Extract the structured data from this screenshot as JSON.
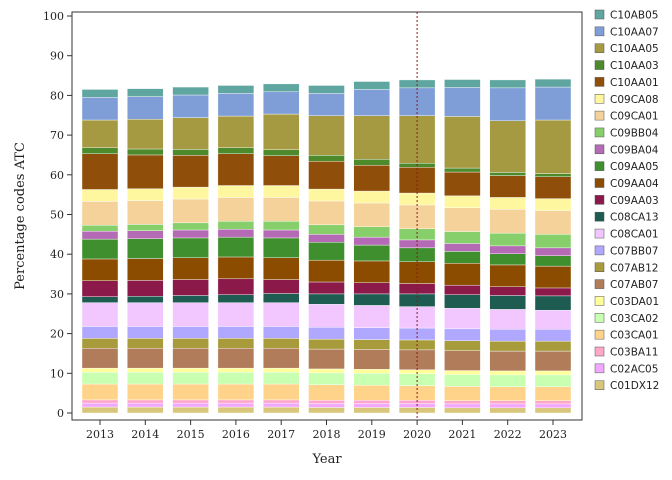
{
  "chart_data": {
    "type": "bar",
    "stacked": true,
    "title": "",
    "xlabel": "Year",
    "ylabel": "Percentage codes ATC",
    "ylim": [
      0,
      100
    ],
    "yticks": [
      0,
      10,
      20,
      30,
      40,
      50,
      60,
      70,
      80,
      90,
      100
    ],
    "grid": false,
    "legend_position": "right",
    "reference_line": {
      "x": "2020",
      "style": "dotted",
      "color": "#8b1a1a"
    },
    "categories": [
      "2013",
      "2014",
      "2015",
      "2016",
      "2017",
      "2018",
      "2019",
      "2020",
      "2021",
      "2022",
      "2023"
    ],
    "segments": [
      {
        "name": "C01DX12",
        "color": "#d8c77a",
        "values": [
          1.5,
          1.5,
          1.5,
          1.5,
          1.5,
          1.4,
          1.4,
          1.4,
          1.3,
          1.3,
          1.3
        ]
      },
      {
        "name": "C02AC05",
        "color": "#f2a8ff",
        "values": [
          1.0,
          1.0,
          1.0,
          1.0,
          1.0,
          1.0,
          1.0,
          1.0,
          1.0,
          1.0,
          1.0
        ]
      },
      {
        "name": "C03BA11",
        "color": "#ffa6c9",
        "values": [
          0.8,
          0.8,
          0.8,
          0.8,
          0.8,
          0.8,
          0.8,
          0.8,
          0.8,
          0.8,
          0.8
        ]
      },
      {
        "name": "C03CA01",
        "color": "#ffd48a",
        "values": [
          4.0,
          4.0,
          4.0,
          4.0,
          4.0,
          3.9,
          3.8,
          3.7,
          3.6,
          3.5,
          3.5
        ]
      },
      {
        "name": "C03CA02",
        "color": "#c8ffb0",
        "values": [
          3.0,
          3.0,
          3.0,
          3.0,
          3.0,
          3.0,
          3.0,
          3.0,
          3.0,
          3.0,
          3.0
        ]
      },
      {
        "name": "C03DA01",
        "color": "#ffff99",
        "values": [
          1.0,
          1.0,
          1.0,
          1.0,
          1.0,
          1.0,
          1.0,
          1.0,
          1.0,
          1.0,
          1.0
        ]
      },
      {
        "name": "C07AB07",
        "color": "#b07c5a",
        "values": [
          5.0,
          5.0,
          5.0,
          5.0,
          5.0,
          5.0,
          5.0,
          5.0,
          5.0,
          5.0,
          5.0
        ]
      },
      {
        "name": "C07AB12",
        "color": "#a79b3c",
        "values": [
          2.5,
          2.5,
          2.5,
          2.5,
          2.5,
          2.5,
          2.5,
          2.5,
          2.5,
          2.5,
          2.5
        ]
      },
      {
        "name": "C07BB07",
        "color": "#b0a8ff",
        "values": [
          3.0,
          3.0,
          3.0,
          3.0,
          3.0,
          3.0,
          3.0,
          3.0,
          3.0,
          3.0,
          3.0
        ]
      },
      {
        "name": "C08CA01",
        "color": "#f2c6ff",
        "values": [
          6.0,
          6.0,
          6.0,
          6.0,
          6.0,
          5.8,
          5.6,
          5.4,
          5.2,
          5.0,
          4.8
        ]
      },
      {
        "name": "C08CA13",
        "color": "#1e5b50",
        "values": [
          1.5,
          1.6,
          1.8,
          2.0,
          2.3,
          2.6,
          2.9,
          3.2,
          3.4,
          3.5,
          3.6
        ]
      },
      {
        "name": "C09AA03",
        "color": "#8b1a4a",
        "values": [
          4.0,
          4.0,
          4.0,
          4.0,
          3.5,
          3.0,
          2.8,
          2.6,
          2.4,
          2.2,
          2.0
        ]
      },
      {
        "name": "C09AA04",
        "color": "#8b4c00",
        "values": [
          5.5,
          5.5,
          5.5,
          5.5,
          5.5,
          5.5,
          5.5,
          5.5,
          5.5,
          5.5,
          5.5
        ]
      },
      {
        "name": "C09AA05",
        "color": "#3f8f2f",
        "values": [
          5.0,
          5.0,
          5.0,
          5.0,
          5.0,
          4.5,
          4.0,
          3.5,
          3.0,
          2.8,
          2.6
        ]
      },
      {
        "name": "C09BA04",
        "color": "#b46ab4",
        "values": [
          2.0,
          2.0,
          2.0,
          2.0,
          2.0,
          2.0,
          2.0,
          2.0,
          2.0,
          2.0,
          2.0
        ]
      },
      {
        "name": "C09BB04",
        "color": "#86cf6a",
        "values": [
          1.5,
          1.6,
          1.8,
          2.0,
          2.2,
          2.4,
          2.6,
          2.8,
          3.0,
          3.2,
          3.4
        ]
      },
      {
        "name": "C09CA01",
        "color": "#f5d29a",
        "values": [
          6.0,
          6.0,
          6.0,
          6.0,
          6.0,
          6.0,
          6.0,
          6.0,
          6.0,
          6.0,
          6.0
        ]
      },
      {
        "name": "C09CA08",
        "color": "#fff7a0",
        "values": [
          3.0,
          3.0,
          3.0,
          3.0,
          3.0,
          3.0,
          3.0,
          3.0,
          3.0,
          3.0,
          3.0
        ]
      },
      {
        "name": "C10AA01",
        "color": "#8f4f0a",
        "values": [
          9.0,
          8.5,
          8.0,
          8.0,
          7.5,
          7.0,
          6.5,
          6.5,
          6.0,
          5.5,
          5.5
        ]
      },
      {
        "name": "C10AA03",
        "color": "#4c8a2c",
        "values": [
          1.5,
          1.5,
          1.5,
          1.5,
          1.5,
          1.5,
          1.5,
          1.0,
          1.0,
          0.8,
          0.8
        ]
      },
      {
        "name": "C10AA05",
        "color": "#a59a42",
        "values": [
          7.0,
          7.5,
          8.0,
          8.0,
          9.0,
          10.0,
          11.0,
          12.0,
          13.0,
          13.0,
          13.5
        ]
      },
      {
        "name": "C10AA07",
        "color": "#7f9ed7",
        "values": [
          5.7,
          5.7,
          5.7,
          5.7,
          5.6,
          5.6,
          6.6,
          7.0,
          7.3,
          8.3,
          8.3
        ]
      },
      {
        "name": "C10AB05",
        "color": "#5fa6a0",
        "values": [
          2.0,
          2.0,
          2.0,
          2.0,
          2.0,
          2.0,
          2.0,
          2.0,
          2.0,
          2.0,
          2.0
        ]
      }
    ]
  }
}
